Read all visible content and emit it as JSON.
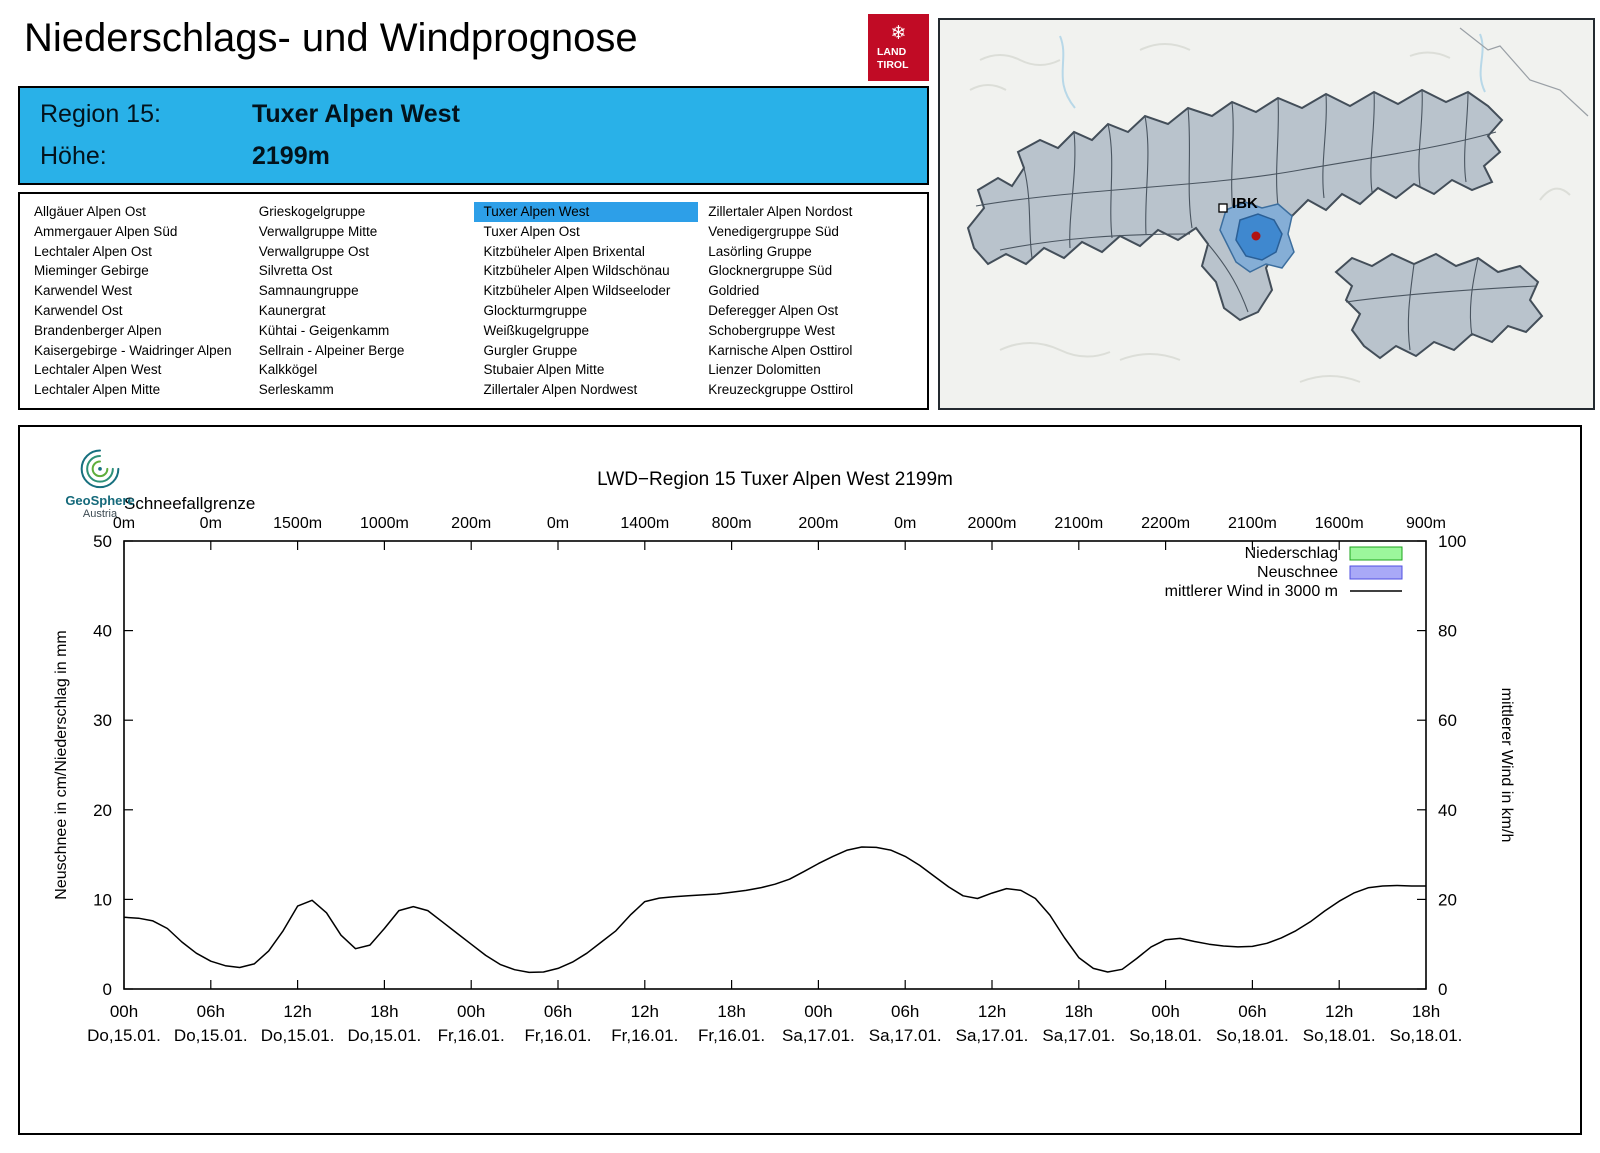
{
  "header": {
    "title": "Niederschlags- und Windprognose",
    "logo": {
      "line1": "LAND",
      "line2": "TIROL",
      "icon": "snowflake",
      "color": "#c10b25"
    }
  },
  "region_info": {
    "region_label": "Region 15:",
    "region_name": "Tuxer Alpen West",
    "height_label": "Höhe:",
    "height_value": "2199m",
    "background": "#29b1e8"
  },
  "region_list": {
    "selected": "Tuxer Alpen West",
    "selected_color": "#2d9fe8",
    "columns": [
      [
        "Allgäuer Alpen Ost",
        "Ammergauer Alpen Süd",
        "Lechtaler Alpen Ost",
        "Mieminger Gebirge",
        "Karwendel West",
        "Karwendel Ost",
        "Brandenberger Alpen",
        "Kaisergebirge - Waidringer Alpen",
        "Lechtaler Alpen West",
        "Lechtaler Alpen Mitte"
      ],
      [
        "Grieskogelgruppe",
        "Verwallgruppe Mitte",
        "Verwallgruppe Ost",
        "Silvretta Ost",
        "Samnaungruppe",
        "Kaunergrat",
        "Kühtai - Geigenkamm",
        "Sellrain - Alpeiner Berge",
        "Kalkkögel",
        "Serleskamm"
      ],
      [
        "Tuxer Alpen West",
        "Tuxer Alpen Ost",
        "Kitzbüheler Alpen Brixental",
        "Kitzbüheler Alpen Wildschönau",
        "Kitzbüheler Alpen Wildseeloder",
        "Glockturmgruppe",
        "Weißkugelgruppe",
        "Gurgler Gruppe",
        "Stubaier Alpen Mitte",
        "Zillertaler Alpen Nordwest"
      ],
      [
        "Zillertaler Alpen Nordost",
        "Venedigergruppe Süd",
        "Lasörling Gruppe",
        "Glocknergruppe Süd",
        "Goldried",
        "Deferegger Alpen Ost",
        "Schobergruppe West",
        "Karnische Alpen Osttirol",
        "Lienzer Dolomitten",
        "Kreuzeckgruppe Osttirol"
      ]
    ]
  },
  "map": {
    "city_label": "IBK",
    "region_fill": "#b9c3cc",
    "highlight_fill": "#3f88cf",
    "highlight_area_fill": "#85aed6",
    "dot_color": "#b11212"
  },
  "chart_logo": {
    "name": "GeoSphere",
    "sub": "Austria"
  },
  "chart_data": {
    "type": "line",
    "title": "LWD−Region 15 Tuxer Alpen West 2199m",
    "snowline_label": "Schneefallgrenze",
    "snowline_values": [
      "0m",
      "0m",
      "1500m",
      "1000m",
      "200m",
      "0m",
      "1400m",
      "800m",
      "200m",
      "0m",
      "2000m",
      "2100m",
      "2200m",
      "2100m",
      "1600m",
      "900m"
    ],
    "ylabel_left": "Neuschnee in cm/Niederschlag in mm",
    "ylabel_right": "mittlerer Wind in km/h",
    "ylim_left": [
      0,
      50
    ],
    "yticks_left": [
      0,
      10,
      20,
      30,
      40,
      50
    ],
    "ylim_right": [
      0,
      100
    ],
    "yticks_right": [
      0,
      20,
      40,
      60,
      80,
      100
    ],
    "x_range_hours": [
      0,
      90
    ],
    "grid": false,
    "legend_position": "top-right-inside",
    "x_ticks": [
      {
        "hour": 0,
        "time": "00h",
        "date": "Do,15.01."
      },
      {
        "hour": 6,
        "time": "06h",
        "date": "Do,15.01."
      },
      {
        "hour": 12,
        "time": "12h",
        "date": "Do,15.01."
      },
      {
        "hour": 18,
        "time": "18h",
        "date": "Do,15.01."
      },
      {
        "hour": 24,
        "time": "00h",
        "date": "Fr,16.01."
      },
      {
        "hour": 30,
        "time": "06h",
        "date": "Fr,16.01."
      },
      {
        "hour": 36,
        "time": "12h",
        "date": "Fr,16.01."
      },
      {
        "hour": 42,
        "time": "18h",
        "date": "Fr,16.01."
      },
      {
        "hour": 48,
        "time": "00h",
        "date": "Sa,17.01."
      },
      {
        "hour": 54,
        "time": "06h",
        "date": "Sa,17.01."
      },
      {
        "hour": 60,
        "time": "12h",
        "date": "Sa,17.01."
      },
      {
        "hour": 66,
        "time": "18h",
        "date": "Sa,17.01."
      },
      {
        "hour": 72,
        "time": "00h",
        "date": "So,18.01."
      },
      {
        "hour": 78,
        "time": "06h",
        "date": "So,18.01."
      },
      {
        "hour": 84,
        "time": "12h",
        "date": "So,18.01."
      },
      {
        "hour": 90,
        "time": "18h",
        "date": "So,18.01."
      }
    ],
    "legend": [
      {
        "label": "Niederschlag",
        "type": "box",
        "fill": "#9cf79c",
        "stroke": "#1ca41c"
      },
      {
        "label": "Neuschnee",
        "type": "box",
        "fill": "#a9a9f7",
        "stroke": "#5050e0"
      },
      {
        "label": "mittlerer Wind in 3000 m",
        "type": "line",
        "stroke": "#000000"
      }
    ],
    "series": [
      {
        "name": "mittlerer Wind in 3000 m",
        "axis": "right",
        "unit": "km/h",
        "x_hours": [
          0,
          1,
          2,
          3,
          4,
          5,
          6,
          7,
          8,
          9,
          10,
          11,
          12,
          13,
          14,
          15,
          16,
          17,
          18,
          19,
          20,
          21,
          22,
          23,
          24,
          25,
          26,
          27,
          28,
          29,
          30,
          31,
          32,
          33,
          34,
          35,
          36,
          37,
          38,
          39,
          40,
          41,
          42,
          43,
          44,
          45,
          46,
          47,
          48,
          49,
          50,
          51,
          52,
          53,
          54,
          55,
          56,
          57,
          58,
          59,
          60,
          61,
          62,
          63,
          64,
          65,
          66,
          67,
          68,
          69,
          70,
          71,
          72,
          73,
          74,
          75,
          76,
          77,
          78,
          79,
          80,
          81,
          82,
          83,
          84,
          85,
          86,
          87,
          88,
          89,
          90
        ],
        "values": [
          16,
          15.8,
          15.2,
          13.5,
          10.5,
          8,
          6.2,
          5.2,
          4.8,
          5.6,
          8.5,
          13,
          18.5,
          19.8,
          17,
          12,
          9,
          9.8,
          13.5,
          17.5,
          18.4,
          17.5,
          15,
          12.5,
          10,
          7.5,
          5.5,
          4.3,
          3.7,
          3.8,
          4.6,
          6,
          8,
          10.5,
          13,
          16.5,
          19.5,
          20.3,
          20.6,
          20.8,
          21,
          21.2,
          21.6,
          22,
          22.6,
          23.4,
          24.5,
          26.2,
          28,
          29.6,
          31,
          31.7,
          31.6,
          31,
          29.6,
          27.6,
          25.2,
          22.8,
          20.8,
          20.2,
          21.4,
          22.4,
          22,
          20.2,
          16.5,
          11.5,
          7,
          4.6,
          3.8,
          4.4,
          6.8,
          9.4,
          11,
          11.3,
          10.6,
          10,
          9.6,
          9.4,
          9.5,
          10.2,
          11.4,
          13,
          15,
          17.4,
          19.6,
          21.4,
          22.6,
          23,
          23.1,
          23,
          23
        ]
      }
    ]
  }
}
